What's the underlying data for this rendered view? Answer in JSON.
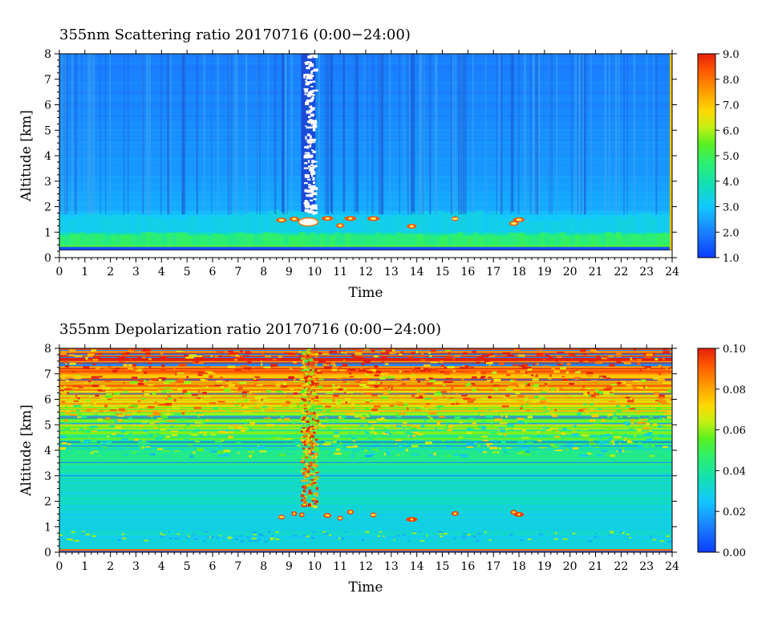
{
  "chart_data": [
    {
      "type": "heatmap",
      "title": "355nm Scattering ratio  20170716 (0:00−24:00)",
      "xlabel": "Time",
      "ylabel": "Altitude [km]",
      "xlim": [
        0,
        24
      ],
      "ylim": [
        0,
        8
      ],
      "xticks": [
        "0",
        "1",
        "2",
        "3",
        "4",
        "5",
        "6",
        "7",
        "8",
        "9",
        "10",
        "11",
        "12",
        "13",
        "14",
        "15",
        "16",
        "17",
        "18",
        "19",
        "20",
        "21",
        "22",
        "23",
        "24"
      ],
      "yticks": [
        "0",
        "1",
        "2",
        "3",
        "4",
        "5",
        "6",
        "7",
        "8"
      ],
      "colorbar": {
        "min": 1.0,
        "max": 9.0,
        "ticks": [
          "1.0",
          "2.0",
          "3.0",
          "4.0",
          "5.0",
          "6.0",
          "7.0",
          "8.0",
          "9.0"
        ]
      },
      "profile_km": [
        0.4,
        0.6,
        1.0,
        1.6,
        2,
        4,
        6,
        8
      ],
      "profile_value": [
        5.2,
        4.8,
        3.6,
        3.0,
        2.6,
        2.3,
        2.1,
        2.0
      ],
      "cloud": {
        "time_start": 9.5,
        "time_end": 10.0,
        "alt_start": 1.8,
        "alt_end": 8.0,
        "value": 9.0
      },
      "low_cloud_times": [
        8.7,
        9.2,
        9.5,
        10.5,
        11.0,
        11.4,
        12.3,
        13.8,
        15.5,
        17.8,
        18.0
      ],
      "low_cloud_alt_km": 1.4
    },
    {
      "type": "heatmap",
      "title": "355nm Depolarization ratio  20170716 (0:00−24:00)",
      "xlabel": "Time",
      "ylabel": "Altitude [km]",
      "xlim": [
        0,
        24
      ],
      "ylim": [
        0,
        8
      ],
      "xticks": [
        "0",
        "1",
        "2",
        "3",
        "4",
        "5",
        "6",
        "7",
        "8",
        "9",
        "10",
        "11",
        "12",
        "13",
        "14",
        "15",
        "16",
        "17",
        "18",
        "19",
        "20",
        "21",
        "22",
        "23",
        "24"
      ],
      "yticks": [
        "0",
        "1",
        "2",
        "3",
        "4",
        "5",
        "6",
        "7",
        "8"
      ],
      "colorbar": {
        "min": 0.0,
        "max": 0.1,
        "ticks": [
          "0.00",
          "0.02",
          "0.04",
          "0.06",
          "0.08",
          "0.10"
        ]
      },
      "profile_km": [
        0,
        1,
        2,
        3,
        4,
        5,
        5.5,
        6,
        7,
        7.5,
        8
      ],
      "profile_value": [
        0.03,
        0.03,
        0.032,
        0.035,
        0.045,
        0.055,
        0.065,
        0.075,
        0.085,
        0.095,
        0.09
      ]
    }
  ]
}
